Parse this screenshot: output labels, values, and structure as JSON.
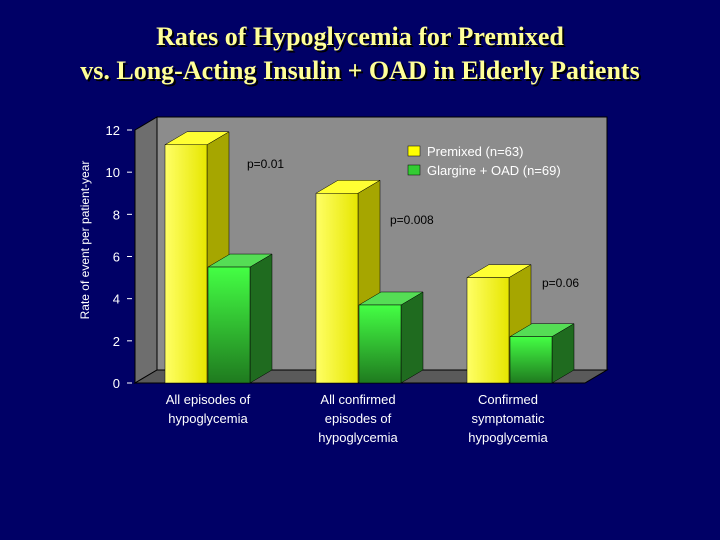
{
  "title": {
    "line1": "Rates of Hypoglycemia for Premixed",
    "line2": "vs. Long-Acting Insulin + OAD in Elderly Patients"
  },
  "footnote": "",
  "chart_data": {
    "type": "bar",
    "ylabel": "Rate of event per patient-year",
    "xlabel": "",
    "ylim": [
      0,
      12
    ],
    "yticks": [
      0,
      2,
      4,
      6,
      8,
      10,
      12
    ],
    "categories": [
      [
        "All episodes of",
        "hypoglycemia"
      ],
      [
        "All confirmed",
        "episodes of",
        "hypoglycemia"
      ],
      [
        "Confirmed",
        "symptomatic",
        "hypoglycemia"
      ]
    ],
    "series": [
      {
        "name": "Premixed (n=63)",
        "values": [
          11.3,
          9.0,
          5.0
        ],
        "color": "#ffff00"
      },
      {
        "name": "Glargine + OAD (n=69)",
        "values": [
          5.5,
          3.7,
          2.2
        ],
        "color": "#33cc33"
      }
    ],
    "annotations": [
      "p=0.01",
      "p=0.008",
      "p=0.06"
    ],
    "legend_position": "top-right",
    "grid": false
  }
}
